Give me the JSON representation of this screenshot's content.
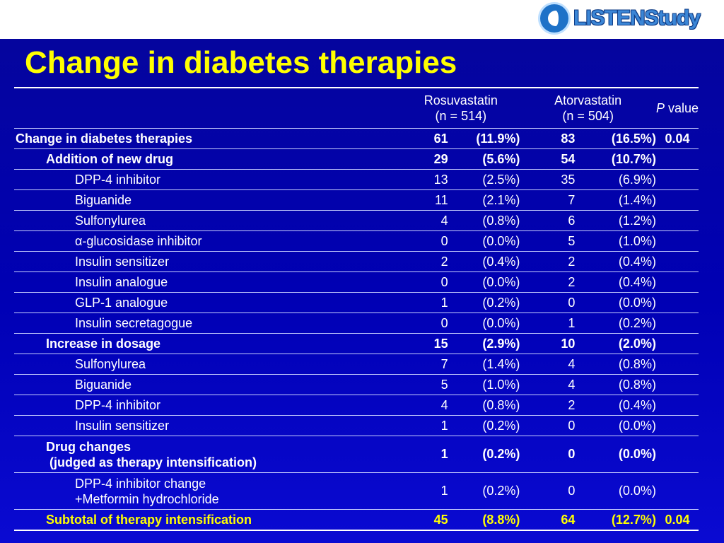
{
  "title": "Change in diabetes therapies",
  "logo": {
    "text": "LISTENStudy"
  },
  "header": {
    "group1": {
      "name": "Rosuvastatin",
      "n": "(n = 514)"
    },
    "group2": {
      "name": "Atorvastatin",
      "n": "(n = 504)"
    },
    "pvalue_italic": "P",
    "pvalue_label": "value"
  },
  "rows": {
    "r0": {
      "label": "Change in diabetes therapies",
      "n1": "61",
      "p1": "(11.9%)",
      "n2": "83",
      "p2": "(16.5%)",
      "pv": "0.04"
    },
    "r1": {
      "label": "Addition of new drug",
      "n1": "29",
      "p1": "(5.6%)",
      "n2": "54",
      "p2": "(10.7%)",
      "pv": ""
    },
    "r2": {
      "label": "DPP-4 inhibitor",
      "n1": "13",
      "p1": "(2.5%)",
      "n2": "35",
      "p2": "(6.9%)",
      "pv": ""
    },
    "r3": {
      "label": "Biguanide",
      "n1": "11",
      "p1": "(2.1%)",
      "n2": "7",
      "p2": "(1.4%)",
      "pv": ""
    },
    "r4": {
      "label": "Sulfonylurea",
      "n1": "4",
      "p1": "(0.8%)",
      "n2": "6",
      "p2": "(1.2%)",
      "pv": ""
    },
    "r5": {
      "label": "α-glucosidase inhibitor",
      "n1": "0",
      "p1": "(0.0%)",
      "n2": "5",
      "p2": "(1.0%)",
      "pv": ""
    },
    "r6": {
      "label": "Insulin sensitizer",
      "n1": "2",
      "p1": "(0.4%)",
      "n2": "2",
      "p2": "(0.4%)",
      "pv": ""
    },
    "r7": {
      "label": "Insulin analogue",
      "n1": "0",
      "p1": "(0.0%)",
      "n2": "2",
      "p2": "(0.4%)",
      "pv": ""
    },
    "r8": {
      "label": "GLP-1 analogue",
      "n1": "1",
      "p1": "(0.2%)",
      "n2": "0",
      "p2": "(0.0%)",
      "pv": ""
    },
    "r9": {
      "label": "Insulin secretagogue",
      "n1": "0",
      "p1": "(0.0%)",
      "n2": "1",
      "p2": "(0.2%)",
      "pv": ""
    },
    "r10": {
      "label": "Increase in dosage",
      "n1": "15",
      "p1": "(2.9%)",
      "n2": "10",
      "p2": "(2.0%)",
      "pv": ""
    },
    "r11": {
      "label": "Sulfonylurea",
      "n1": "7",
      "p1": "(1.4%)",
      "n2": "4",
      "p2": "(0.8%)",
      "pv": ""
    },
    "r12": {
      "label": "Biguanide",
      "n1": "5",
      "p1": "(1.0%)",
      "n2": "4",
      "p2": "(0.8%)",
      "pv": ""
    },
    "r13": {
      "label": "DPP-4 inhibitor",
      "n1": "4",
      "p1": "(0.8%)",
      "n2": "2",
      "p2": "(0.4%)",
      "pv": ""
    },
    "r14": {
      "label": "Insulin sensitizer",
      "n1": "1",
      "p1": "(0.2%)",
      "n2": "0",
      "p2": "(0.0%)",
      "pv": ""
    },
    "r15": {
      "label_line1": "Drug changes",
      "label_line2": "(judged as therapy intensification)",
      "n1": "1",
      "p1": "(0.2%)",
      "n2": "0",
      "p2": "(0.0%)",
      "pv": ""
    },
    "r16": {
      "label_line1": "DPP-4 inhibitor change",
      "label_line2": "+Metformin hydrochloride",
      "n1": "1",
      "p1": "(0.2%)",
      "n2": "0",
      "p2": "(0.0%)",
      "pv": ""
    },
    "r17": {
      "label": "Subtotal of therapy intensification",
      "n1": "45",
      "p1": "(8.8%)",
      "n2": "64",
      "p2": "(12.7%)",
      "pv": "0.04"
    }
  }
}
